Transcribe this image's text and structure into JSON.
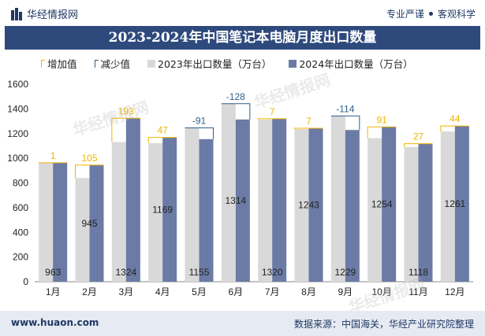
{
  "header": {
    "brand": "华经情报网",
    "tagline_left": "专业严谨",
    "tagline_right": "客观科学"
  },
  "title": "2023-2024年中国笔记本电脑月度出口数量",
  "legend": {
    "increase": "增加值",
    "decrease": "减少值",
    "series_2023": "2023年出口数量（万台）",
    "series_2024": "2024年出口数量（万台）"
  },
  "footer": {
    "site": "www.huaon.com",
    "source": "数据来源：中国海关，华经产业研究院整理"
  },
  "colors": {
    "title_bg": "#2e4a7d",
    "bar_2023": "#d9d9d9",
    "bar_2024": "#6b7ba6",
    "increase": "#f0b400",
    "decrease": "#2e5e8a"
  },
  "chart_data": {
    "type": "bar",
    "categories": [
      "1月",
      "2月",
      "3月",
      "4月",
      "5月",
      "6月",
      "7月",
      "8月",
      "9月",
      "10月",
      "11月",
      "12月"
    ],
    "series": [
      {
        "name": "2023年出口数量（万台）",
        "values": [
          962,
          840,
          1131,
          1122,
          1246,
          1442,
          1313,
          1236,
          1343,
          1163,
          1091,
          1217
        ]
      },
      {
        "name": "2024年出口数量（万台）",
        "values": [
          963,
          945,
          1324,
          1169,
          1155,
          1314,
          1320,
          1243,
          1229,
          1254,
          1118,
          1261
        ]
      }
    ],
    "changes": [
      1,
      105,
      193,
      47,
      -91,
      -128,
      7,
      7,
      -114,
      91,
      27,
      44
    ],
    "ylim": [
      0,
      1600
    ],
    "yticks": [
      0,
      200,
      400,
      600,
      800,
      1000,
      1200,
      1400,
      1600
    ],
    "grid": false
  }
}
